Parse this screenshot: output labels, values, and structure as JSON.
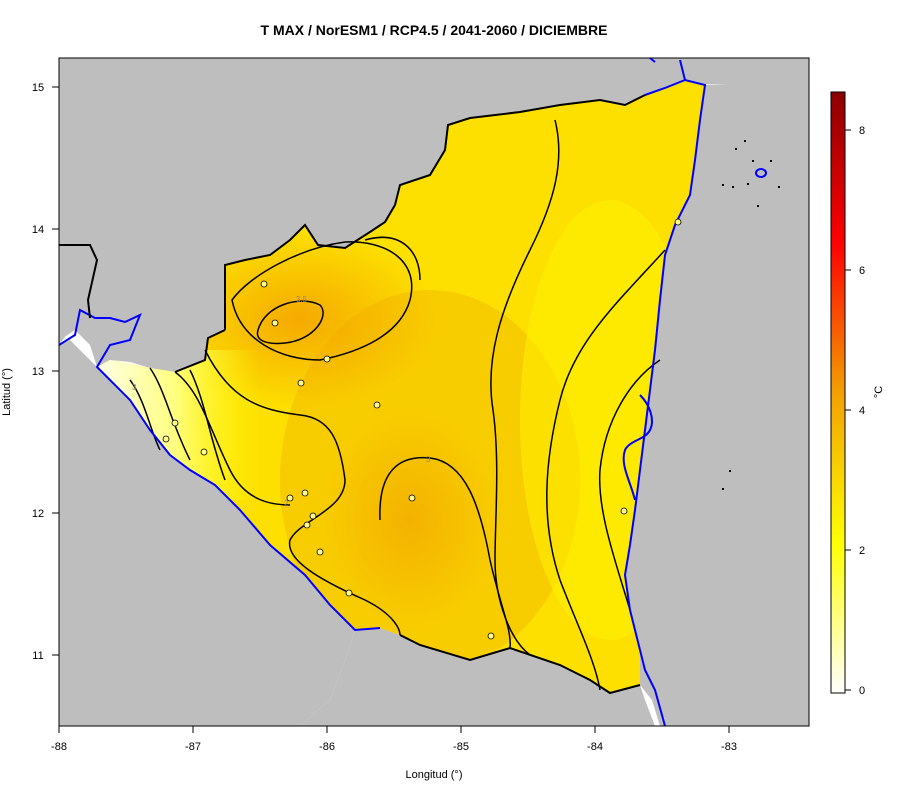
{
  "title": "T MAX / NorESM1 / RCP4.5 / 2041-2060 / DICIEMBRE",
  "x_axis": {
    "label": "Longitud (°)",
    "ticks": [
      "-88",
      "-87",
      "-86",
      "-85",
      "-84",
      "-83"
    ]
  },
  "y_axis": {
    "label": "Latitud (°)",
    "ticks": [
      "11",
      "12",
      "13",
      "14",
      "15"
    ]
  },
  "colorbar": {
    "unit_label": "°C",
    "ticks": [
      "0",
      "2",
      "4",
      "6",
      "8"
    ],
    "colors": [
      "#ffffff",
      "#ffff00",
      "#f2a000",
      "#ff0000",
      "#8b0000"
    ]
  },
  "colors": {
    "land_outside": "#bebebe",
    "water": "#ffffff",
    "coastline": "#0000ff",
    "border": "#000000",
    "contour": "#000000",
    "station_fill": "#ffff88"
  },
  "contour_labels": [
    "3.5",
    "3",
    "2",
    "3"
  ]
}
